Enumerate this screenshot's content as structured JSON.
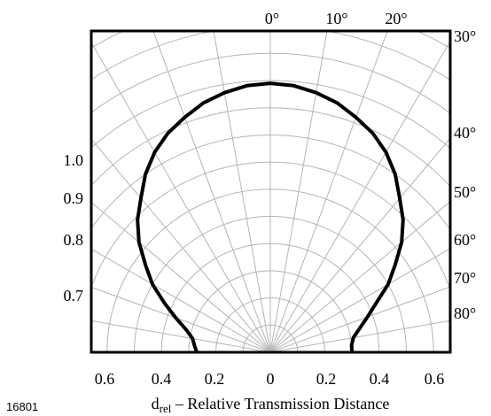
{
  "figure_id": "16801",
  "chart_data": {
    "type": "line",
    "coordinate_system": "polar",
    "angle_unit": "deg",
    "title": "",
    "xlabel_main": "d",
    "xlabel_sub": "rel",
    "xlabel_rest": " – Relative Transmission Distance",
    "x_ticks": [
      "0.6",
      "0.4",
      "0.2",
      "0",
      "0.2",
      "0.4",
      "0.6"
    ],
    "x_tick_values": [
      -0.6,
      -0.4,
      -0.2,
      0,
      0.2,
      0.4,
      0.6
    ],
    "angle_labels_top": [
      {
        "label": "0°",
        "angle": 0
      },
      {
        "label": "10°",
        "angle": 10
      },
      {
        "label": "20°",
        "angle": 20
      }
    ],
    "angle_labels_right": [
      {
        "label": "30°",
        "angle": 30
      },
      {
        "label": "40°",
        "angle": 40
      },
      {
        "label": "50°",
        "angle": 50
      },
      {
        "label": "60°",
        "angle": 60
      },
      {
        "label": "70°",
        "angle": 70
      },
      {
        "label": "80°",
        "angle": 80
      }
    ],
    "radial_labels_left": [
      {
        "label": "1.0",
        "value": 1.0,
        "angle": -45
      },
      {
        "label": "0.9",
        "value": 0.9,
        "angle": -55
      },
      {
        "label": "0.8",
        "value": 0.8,
        "angle": -65
      },
      {
        "label": "0.7",
        "value": 0.7,
        "angle": -75
      }
    ],
    "grid": true,
    "range": {
      "angle_min": -90,
      "angle_max": 90,
      "r_max": 1.0
    },
    "series": [
      {
        "points": [
          {
            "angle": -90,
            "r": 0.27
          },
          {
            "angle": -85,
            "r": 0.28
          },
          {
            "angle": -80,
            "r": 0.29
          },
          {
            "angle": -75,
            "r": 0.32
          },
          {
            "angle": -70,
            "r": 0.37
          },
          {
            "angle": -65,
            "r": 0.43
          },
          {
            "angle": -60,
            "r": 0.5
          },
          {
            "angle": -55,
            "r": 0.56
          },
          {
            "angle": -50,
            "r": 0.63
          },
          {
            "angle": -45,
            "r": 0.69
          },
          {
            "angle": -40,
            "r": 0.74
          },
          {
            "angle": -35,
            "r": 0.8
          },
          {
            "angle": -30,
            "r": 0.85
          },
          {
            "angle": -25,
            "r": 0.89
          },
          {
            "angle": -20,
            "r": 0.92
          },
          {
            "angle": -15,
            "r": 0.95
          },
          {
            "angle": -10,
            "r": 0.97
          },
          {
            "angle": -5,
            "r": 0.985
          },
          {
            "angle": 0,
            "r": 0.99
          },
          {
            "angle": 5,
            "r": 0.985
          },
          {
            "angle": 10,
            "r": 0.97
          },
          {
            "angle": 15,
            "r": 0.95
          },
          {
            "angle": 20,
            "r": 0.92
          },
          {
            "angle": 25,
            "r": 0.89
          },
          {
            "angle": 30,
            "r": 0.85
          },
          {
            "angle": 35,
            "r": 0.8
          },
          {
            "angle": 40,
            "r": 0.74
          },
          {
            "angle": 45,
            "r": 0.69
          },
          {
            "angle": 50,
            "r": 0.63
          },
          {
            "angle": 55,
            "r": 0.56
          },
          {
            "angle": 60,
            "r": 0.5
          },
          {
            "angle": 65,
            "r": 0.43
          },
          {
            "angle": 70,
            "r": 0.38
          },
          {
            "angle": 75,
            "r": 0.34
          },
          {
            "angle": 80,
            "r": 0.31
          },
          {
            "angle": 85,
            "r": 0.3
          },
          {
            "angle": 90,
            "r": 0.3
          }
        ]
      }
    ]
  }
}
